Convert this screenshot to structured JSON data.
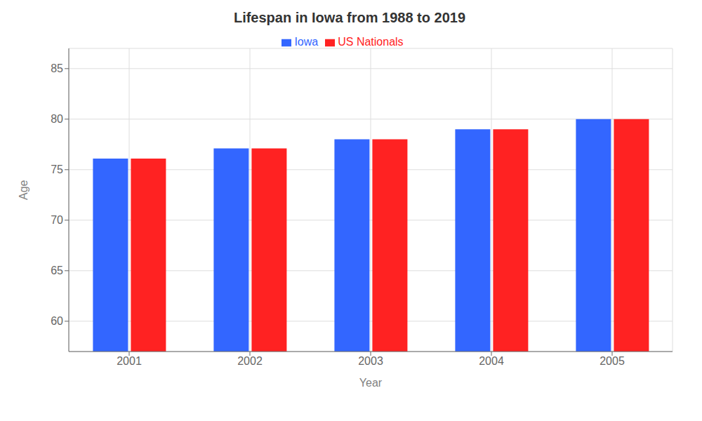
{
  "chart_data": {
    "type": "bar",
    "title": "Lifespan in Iowa from 1988 to 2019",
    "xlabel": "Year",
    "ylabel": "Age",
    "categories": [
      "2001",
      "2002",
      "2003",
      "2004",
      "2005"
    ],
    "series": [
      {
        "name": "Iowa",
        "color": "#3366ff",
        "values": [
          76.1,
          77.1,
          78.0,
          79.0,
          80.0
        ]
      },
      {
        "name": "US Nationals",
        "color": "#ff2222",
        "values": [
          76.1,
          77.1,
          78.0,
          79.0,
          80.0
        ]
      }
    ],
    "ylim": [
      57,
      87
    ],
    "yticks": [
      60,
      65,
      70,
      75,
      80,
      85
    ],
    "grid": true,
    "legend": "top"
  }
}
